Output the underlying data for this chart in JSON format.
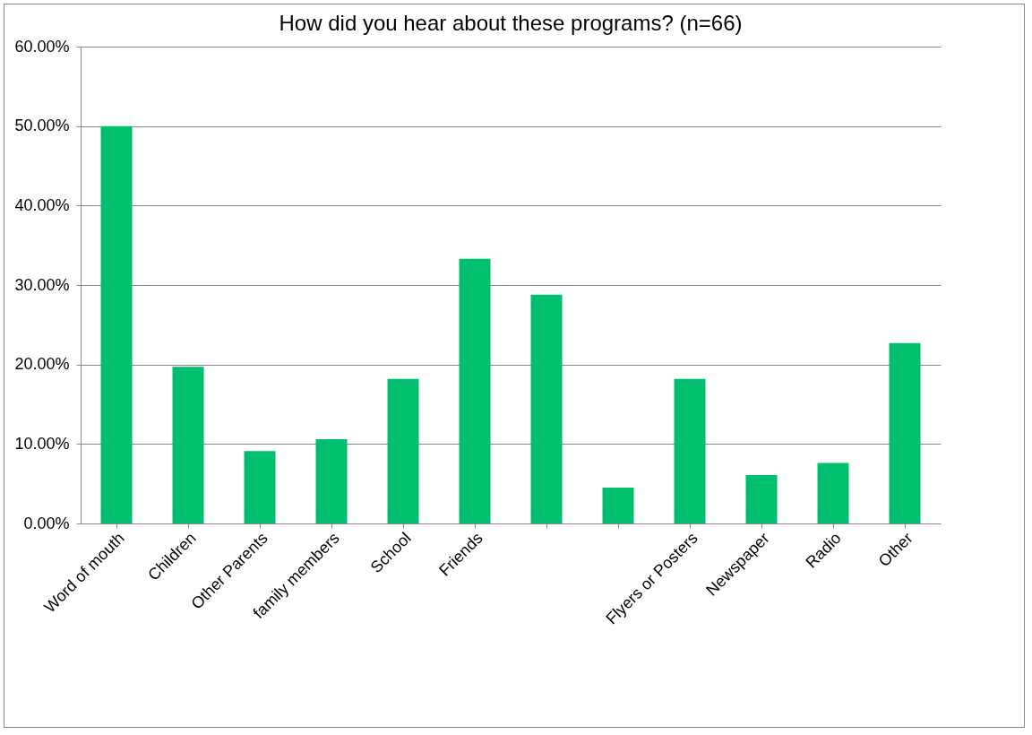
{
  "chart_data": {
    "type": "bar",
    "title": "How did you hear about these programs?  (n=66)",
    "categories": [
      "Word of mouth",
      "Children",
      "Other Parents",
      "family members",
      "School",
      "Friends",
      null,
      null,
      "Flyers or Posters",
      "Newspaper",
      "Radio",
      "Other"
    ],
    "values": [
      50.0,
      19.7,
      9.1,
      10.6,
      18.2,
      33.3,
      28.8,
      4.5,
      18.2,
      6.1,
      7.6,
      22.7
    ],
    "color": "#00bf6f",
    "ylim": [
      0,
      60
    ],
    "yticks": [
      {
        "value": 0,
        "label": "0.00%"
      },
      {
        "value": 10,
        "label": "10.00%"
      },
      {
        "value": 20,
        "label": "20.00%"
      },
      {
        "value": 30,
        "label": "30.00%"
      },
      {
        "value": 40,
        "label": "40.00%"
      },
      {
        "value": 50,
        "label": "50.00%"
      },
      {
        "value": 60,
        "label": "60.00%"
      }
    ],
    "grid": "y"
  }
}
